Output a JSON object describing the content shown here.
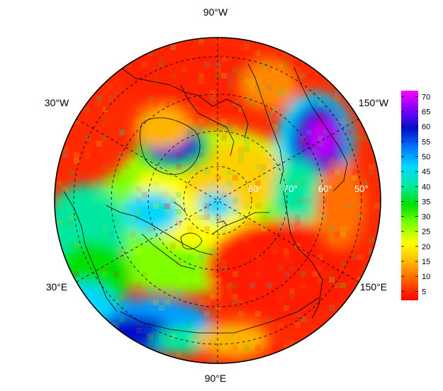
{
  "map": {
    "projection": "north-polar-stereographic",
    "colormap": "rainbow (red low, magenta high)",
    "longitude_labels": {
      "top": "90°W",
      "upper_left": "30°W",
      "upper_right": "150°W",
      "lower_left": "30°E",
      "lower_right": "150°E",
      "bottom": "90°E"
    },
    "latitude_labels": [
      "80°",
      "70°",
      "60°",
      "50°"
    ],
    "graticule": "dashed",
    "coastlines": true
  },
  "colorbar": {
    "ticks": [
      "5",
      "10",
      "15",
      "20",
      "25",
      "30",
      "35",
      "40",
      "45",
      "50",
      "55",
      "60",
      "65",
      "70"
    ],
    "range": [
      2,
      72
    ],
    "stops": [
      "#ff0000",
      "#ff5a00",
      "#ffb400",
      "#ffff00",
      "#7fff00",
      "#00e000",
      "#00e8a0",
      "#00d8ff",
      "#0078ff",
      "#0010c8",
      "#8000ff",
      "#ff00ff"
    ]
  }
}
